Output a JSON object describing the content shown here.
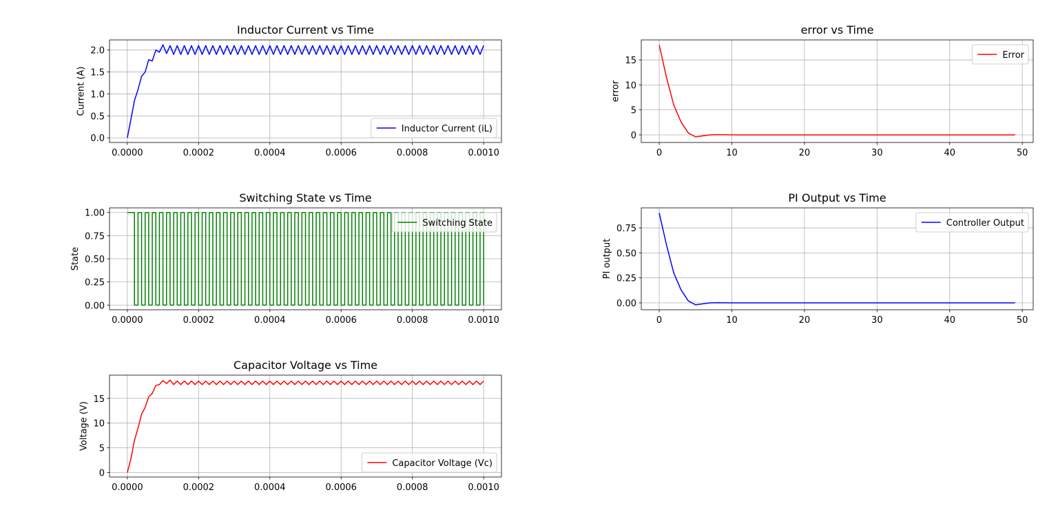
{
  "chart_data": [
    {
      "type": "line",
      "title": "Inductor Current vs Time",
      "y_label": "Current (A)",
      "x": [
        0,
        1e-05,
        2e-05,
        3e-05,
        4e-05,
        5e-05,
        6e-05,
        7e-05,
        8e-05,
        9e-05,
        0.0001,
        0.00011,
        0.00012,
        0.00013,
        0.00014,
        0.00015,
        0.00016,
        0.00017,
        0.00018,
        0.00019,
        0.0002,
        0.00021,
        0.00022,
        0.00023,
        0.00024,
        0.00025,
        0.00026,
        0.00027,
        0.00028,
        0.00029,
        0.0003,
        0.00031,
        0.00032,
        0.00033,
        0.00034,
        0.00035,
        0.00036,
        0.00037,
        0.00038,
        0.00039,
        0.0004,
        0.00041,
        0.00042,
        0.00043,
        0.00044,
        0.00045,
        0.00046,
        0.00047,
        0.00048,
        0.00049,
        0.0005,
        0.00051,
        0.00052,
        0.00053,
        0.00054,
        0.00055,
        0.00056,
        0.00057,
        0.00058,
        0.00059,
        0.0006,
        0.00061,
        0.00062,
        0.00063,
        0.00064,
        0.00065,
        0.00066,
        0.00067,
        0.00068,
        0.00069,
        0.0007,
        0.00071,
        0.00072,
        0.00073,
        0.00074,
        0.00075,
        0.00076,
        0.00077,
        0.00078,
        0.00079,
        0.0008,
        0.00081,
        0.00082,
        0.00083,
        0.00084,
        0.00085,
        0.00086,
        0.00087,
        0.00088,
        0.00089,
        0.0009,
        0.00091,
        0.00092,
        0.00093,
        0.00094,
        0.00095,
        0.00096,
        0.00097,
        0.00098,
        0.00099,
        0.001
      ],
      "series": [
        {
          "name": "Inductor Current (iL)",
          "color": "#0000ff",
          "values": [
            0,
            0.42,
            0.85,
            1.1,
            1.4,
            1.5,
            1.78,
            1.75,
            2.0,
            1.95,
            2.12,
            1.92,
            2.1,
            1.9,
            2.1,
            1.9,
            2.1,
            1.9,
            2.1,
            1.9,
            2.1,
            1.9,
            2.1,
            1.9,
            2.1,
            1.9,
            2.1,
            1.9,
            2.1,
            1.9,
            2.1,
            1.9,
            2.1,
            1.9,
            2.1,
            1.9,
            2.1,
            1.9,
            2.1,
            1.9,
            2.1,
            1.9,
            2.1,
            1.9,
            2.1,
            1.9,
            2.1,
            1.9,
            2.1,
            1.9,
            2.1,
            1.9,
            2.1,
            1.9,
            2.1,
            1.9,
            2.1,
            1.9,
            2.1,
            1.9,
            2.1,
            1.9,
            2.1,
            1.9,
            2.1,
            1.9,
            2.1,
            1.9,
            2.1,
            1.9,
            2.1,
            1.9,
            2.1,
            1.9,
            2.1,
            1.9,
            2.1,
            1.9,
            2.1,
            1.9,
            2.1,
            1.9,
            2.1,
            1.9,
            2.1,
            1.9,
            2.1,
            1.9,
            2.1,
            1.9,
            2.1,
            1.9,
            2.1,
            1.9,
            2.1,
            1.9,
            2.1,
            1.9,
            2.1,
            1.9,
            2.1
          ]
        }
      ],
      "xlim": [
        -5e-05,
        0.00105
      ],
      "ylim": [
        -0.106,
        2.23
      ],
      "xticks": [
        {
          "value": 0,
          "label": "0.0000"
        },
        {
          "value": 0.0002,
          "label": "0.0002"
        },
        {
          "value": 0.0004,
          "label": "0.0004"
        },
        {
          "value": 0.0006,
          "label": "0.0006"
        },
        {
          "value": 0.0008,
          "label": "0.0008"
        },
        {
          "value": 0.001,
          "label": "0.0010"
        }
      ],
      "yticks": [
        {
          "value": 0,
          "label": "0.0"
        },
        {
          "value": 0.5,
          "label": "0.5"
        },
        {
          "value": 1,
          "label": "1.0"
        },
        {
          "value": 1.5,
          "label": "1.5"
        },
        {
          "value": 2,
          "label": "2.0"
        }
      ],
      "grid": true,
      "legend": "lower right"
    },
    {
      "type": "step",
      "title": "Switching State vs Time",
      "y_label": "State",
      "x": [
        0,
        1e-05,
        2e-05,
        3e-05,
        4e-05,
        5e-05,
        6e-05,
        7e-05,
        8e-05,
        9e-05,
        0.0001,
        0.00011,
        0.00012,
        0.00013,
        0.00014,
        0.00015,
        0.00016,
        0.00017,
        0.00018,
        0.00019,
        0.0002,
        0.00021,
        0.00022,
        0.00023,
        0.00024,
        0.00025,
        0.00026,
        0.00027,
        0.00028,
        0.00029,
        0.0003,
        0.00031,
        0.00032,
        0.00033,
        0.00034,
        0.00035,
        0.00036,
        0.00037,
        0.00038,
        0.00039,
        0.0004,
        0.00041,
        0.00042,
        0.00043,
        0.00044,
        0.00045,
        0.00046,
        0.00047,
        0.00048,
        0.00049,
        0.0005,
        0.00051,
        0.00052,
        0.00053,
        0.00054,
        0.00055,
        0.00056,
        0.00057,
        0.00058,
        0.00059,
        0.0006,
        0.00061,
        0.00062,
        0.00063,
        0.00064,
        0.00065,
        0.00066,
        0.00067,
        0.00068,
        0.00069,
        0.0007,
        0.00071,
        0.00072,
        0.00073,
        0.00074,
        0.00075,
        0.00076,
        0.00077,
        0.00078,
        0.00079,
        0.0008,
        0.00081,
        0.00082,
        0.00083,
        0.00084,
        0.00085,
        0.00086,
        0.00087,
        0.00088,
        0.00089,
        0.0009,
        0.00091,
        0.00092,
        0.00093,
        0.00094,
        0.00095,
        0.00096,
        0.00097,
        0.00098,
        0.00099,
        0.001
      ],
      "series": [
        {
          "name": "Switching State",
          "color": "#008000",
          "values": [
            1,
            1,
            0,
            1,
            0,
            1,
            0,
            1,
            0,
            1,
            0,
            1,
            0,
            1,
            0,
            1,
            0,
            1,
            0,
            1,
            0,
            1,
            0,
            1,
            0,
            1,
            0,
            1,
            0,
            1,
            0,
            1,
            0,
            1,
            0,
            1,
            0,
            1,
            0,
            1,
            0,
            1,
            0,
            1,
            0,
            1,
            0,
            1,
            0,
            1,
            0,
            1,
            0,
            1,
            0,
            1,
            0,
            1,
            0,
            1,
            0,
            1,
            0,
            1,
            0,
            1,
            0,
            1,
            0,
            1,
            0,
            1,
            0,
            1,
            0,
            1,
            0,
            1,
            0,
            1,
            0,
            1,
            0,
            1,
            0,
            1,
            0,
            1,
            0,
            1,
            0,
            1,
            0,
            1,
            0,
            1,
            0,
            1,
            0,
            1,
            0
          ]
        }
      ],
      "xlim": [
        -5e-05,
        0.00105
      ],
      "ylim": [
        -0.05,
        1.05
      ],
      "xticks": [
        {
          "value": 0,
          "label": "0.0000"
        },
        {
          "value": 0.0002,
          "label": "0.0002"
        },
        {
          "value": 0.0004,
          "label": "0.0004"
        },
        {
          "value": 0.0006,
          "label": "0.0006"
        },
        {
          "value": 0.0008,
          "label": "0.0008"
        },
        {
          "value": 0.001,
          "label": "0.0010"
        }
      ],
      "yticks": [
        {
          "value": 0,
          "label": "0.00"
        },
        {
          "value": 0.25,
          "label": "0.25"
        },
        {
          "value": 0.5,
          "label": "0.50"
        },
        {
          "value": 0.75,
          "label": "0.75"
        },
        {
          "value": 1,
          "label": "1.00"
        }
      ],
      "grid": true,
      "legend": "upper right"
    },
    {
      "type": "line",
      "title": "Capacitor Voltage vs Time",
      "y_label": "Voltage (V)",
      "x": [
        0,
        1e-05,
        2e-05,
        3e-05,
        4e-05,
        5e-05,
        6e-05,
        7e-05,
        8e-05,
        9e-05,
        0.0001,
        0.00011,
        0.00012,
        0.00013,
        0.00014,
        0.00015,
        0.00016,
        0.00017,
        0.00018,
        0.00019,
        0.0002,
        0.00021,
        0.00022,
        0.00023,
        0.00024,
        0.00025,
        0.00026,
        0.00027,
        0.00028,
        0.00029,
        0.0003,
        0.00031,
        0.00032,
        0.00033,
        0.00034,
        0.00035,
        0.00036,
        0.00037,
        0.00038,
        0.00039,
        0.0004,
        0.00041,
        0.00042,
        0.00043,
        0.00044,
        0.00045,
        0.00046,
        0.00047,
        0.00048,
        0.00049,
        0.0005,
        0.00051,
        0.00052,
        0.00053,
        0.00054,
        0.00055,
        0.00056,
        0.00057,
        0.00058,
        0.00059,
        0.0006,
        0.00061,
        0.00062,
        0.00063,
        0.00064,
        0.00065,
        0.00066,
        0.00067,
        0.00068,
        0.00069,
        0.0007,
        0.00071,
        0.00072,
        0.00073,
        0.00074,
        0.00075,
        0.00076,
        0.00077,
        0.00078,
        0.00079,
        0.0008,
        0.00081,
        0.00082,
        0.00083,
        0.00084,
        0.00085,
        0.00086,
        0.00087,
        0.00088,
        0.00089,
        0.0009,
        0.00091,
        0.00092,
        0.00093,
        0.00094,
        0.00095,
        0.00096,
        0.00097,
        0.00098,
        0.00099,
        0.001
      ],
      "series": [
        {
          "name": "Capacitor Voltage (Vc)",
          "color": "#ff0000",
          "values": [
            0,
            2.8,
            6.5,
            9,
            11.8,
            13.2,
            15.3,
            16,
            17.6,
            17.8,
            18.6,
            18,
            18.7,
            17.8,
            18.5,
            17.8,
            18.5,
            17.8,
            18.5,
            17.8,
            18.5,
            17.8,
            18.5,
            17.8,
            18.5,
            17.8,
            18.5,
            17.8,
            18.5,
            17.8,
            18.5,
            17.8,
            18.5,
            17.8,
            18.5,
            17.8,
            18.5,
            17.8,
            18.5,
            17.8,
            18.5,
            17.8,
            18.5,
            17.8,
            18.5,
            17.8,
            18.5,
            17.8,
            18.5,
            17.8,
            18.5,
            17.8,
            18.5,
            17.8,
            18.5,
            17.8,
            18.5,
            17.8,
            18.5,
            17.8,
            18.5,
            17.8,
            18.5,
            17.8,
            18.5,
            17.8,
            18.5,
            17.8,
            18.5,
            17.8,
            18.5,
            17.8,
            18.5,
            17.8,
            18.5,
            17.8,
            18.5,
            17.8,
            18.5,
            17.8,
            18.5,
            17.8,
            18.5,
            17.8,
            18.5,
            17.8,
            18.5,
            17.8,
            18.5,
            17.8,
            18.5,
            17.8,
            18.5,
            17.8,
            18.5,
            17.8,
            18.5,
            17.8,
            18.5,
            17.8,
            18.5
          ]
        }
      ],
      "xlim": [
        -5e-05,
        0.00105
      ],
      "ylim": [
        -0.9,
        19.7
      ],
      "xticks": [
        {
          "value": 0,
          "label": "0.0000"
        },
        {
          "value": 0.0002,
          "label": "0.0002"
        },
        {
          "value": 0.0004,
          "label": "0.0004"
        },
        {
          "value": 0.0006,
          "label": "0.0006"
        },
        {
          "value": 0.0008,
          "label": "0.0008"
        },
        {
          "value": 0.001,
          "label": "0.0010"
        }
      ],
      "yticks": [
        0,
        5,
        10,
        15
      ],
      "grid": true,
      "legend": "lower right"
    },
    {
      "type": "line",
      "title": "error vs Time",
      "y_label": "error",
      "x": [
        0,
        1,
        2,
        3,
        4,
        5,
        6,
        7,
        8,
        9,
        10,
        11,
        12,
        13,
        14,
        15,
        16,
        17,
        18,
        19,
        20,
        21,
        22,
        23,
        24,
        25,
        26,
        27,
        28,
        29,
        30,
        31,
        32,
        33,
        34,
        35,
        36,
        37,
        38,
        39,
        40,
        41,
        42,
        43,
        44,
        45,
        46,
        47,
        48,
        49
      ],
      "series": [
        {
          "name": "Error",
          "color": "#ff0000",
          "values": [
            18,
            11.5,
            6,
            2.6,
            0.4,
            -0.4,
            -0.2,
            0,
            0.05,
            0.03,
            0.01,
            0,
            0,
            0,
            0,
            0,
            0,
            0,
            0,
            0,
            0,
            0,
            0,
            0,
            0,
            0,
            0,
            0,
            0,
            0,
            0,
            0,
            0,
            0,
            0,
            0,
            0,
            0,
            0,
            0,
            0,
            0,
            0,
            0,
            0,
            0,
            0,
            0,
            0,
            0
          ]
        }
      ],
      "xlim": [
        -2.47,
        51.5
      ],
      "ylim": [
        -1.52,
        19
      ],
      "xticks": [
        0,
        10,
        20,
        30,
        40,
        50
      ],
      "yticks": [
        0,
        5,
        10,
        15
      ],
      "grid": true,
      "legend": "upper right"
    },
    {
      "type": "line",
      "title": "PI Output vs Time",
      "y_label": "PI output",
      "x": [
        0,
        1,
        2,
        3,
        4,
        5,
        6,
        7,
        8,
        9,
        10,
        11,
        12,
        13,
        14,
        15,
        16,
        17,
        18,
        19,
        20,
        21,
        22,
        23,
        24,
        25,
        26,
        27,
        28,
        29,
        30,
        31,
        32,
        33,
        34,
        35,
        36,
        37,
        38,
        39,
        40,
        41,
        42,
        43,
        44,
        45,
        46,
        47,
        48,
        49
      ],
      "series": [
        {
          "name": "Controller Output",
          "color": "#0000ff",
          "values": [
            0.9,
            0.58,
            0.3,
            0.13,
            0.02,
            -0.02,
            -0.01,
            0,
            0.002,
            0.001,
            0,
            0,
            0,
            0,
            0,
            0,
            0,
            0,
            0,
            0,
            0,
            0,
            0,
            0,
            0,
            0,
            0,
            0,
            0,
            0,
            0,
            0,
            0,
            0,
            0,
            0,
            0,
            0,
            0,
            0,
            0,
            0,
            0,
            0,
            0,
            0,
            0,
            0,
            0,
            0
          ]
        }
      ],
      "xlim": [
        -2.47,
        51.5
      ],
      "ylim": [
        -0.069,
        0.95
      ],
      "xticks": [
        0,
        10,
        20,
        30,
        40,
        50
      ],
      "yticks": [
        {
          "value": 0,
          "label": "0.00"
        },
        {
          "value": 0.25,
          "label": "0.25"
        },
        {
          "value": 0.5,
          "label": "0.50"
        },
        {
          "value": 0.75,
          "label": "0.75"
        }
      ],
      "grid": true,
      "legend": "upper right"
    }
  ]
}
